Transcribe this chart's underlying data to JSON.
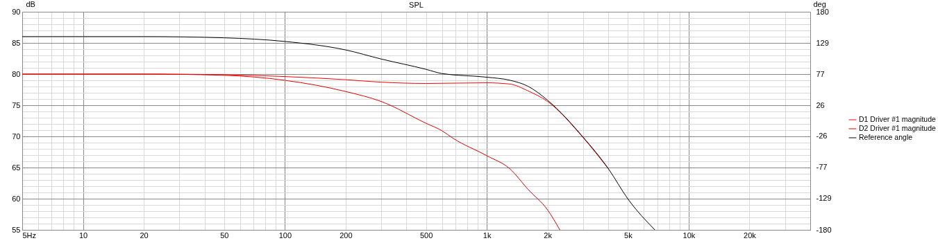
{
  "chart_data": {
    "type": "line",
    "title": "SPL",
    "ylabel": "dB",
    "y2label": "deg",
    "log": "x",
    "x": [
      5,
      10,
      20,
      50,
      100,
      200,
      300,
      500,
      600,
      680,
      1000,
      1300,
      1600,
      2000,
      2300
    ],
    "series": [
      {
        "name": "D1 Driver #1 magnitude",
        "color": "#ff0000",
        "x": [
          5,
          10,
          20,
          50,
          100,
          200,
          300,
          500,
          1000,
          1300,
          1600,
          2000,
          3000,
          4000
        ],
        "values": [
          80,
          80,
          80,
          79.9,
          79.6,
          79.1,
          78.7,
          78.5,
          78.6,
          78.4,
          77.3,
          75.6,
          69.8,
          64.8
        ]
      },
      {
        "name": "D2 Driver #1 magnitude",
        "color": "#e00000",
        "values": [
          80,
          80,
          80,
          79.8,
          79.0,
          77.2,
          75.6,
          72.1,
          70.9,
          69.7,
          66.9,
          64.8,
          61.5,
          58.2,
          55.0
        ]
      },
      {
        "name": "Reference angle",
        "color": "#000000",
        "axis": "y2",
        "x": [
          5,
          10,
          20,
          50,
          100,
          200,
          300,
          500,
          600,
          1000,
          1300,
          1600,
          2000,
          3000,
          4000,
          5000,
          6800
        ],
        "values": [
          139,
          139,
          139,
          137,
          131,
          117,
          102,
          85,
          78,
          72,
          67,
          57,
          34,
          -27,
          -79,
          -129,
          -180
        ]
      }
    ],
    "xlim": [
      5,
      40000
    ],
    "xticks": [
      {
        "value": 5,
        "label": "5Hz"
      },
      {
        "value": 6,
        "label": null
      },
      {
        "value": 7,
        "label": null
      },
      {
        "value": 8,
        "label": null
      },
      {
        "value": 9,
        "label": null
      },
      10,
      20,
      {
        "value": 30,
        "label": null
      },
      {
        "value": 40,
        "label": null
      },
      50,
      {
        "value": 60,
        "label": null
      },
      {
        "value": 70,
        "label": null
      },
      {
        "value": 80,
        "label": null
      },
      {
        "value": 90,
        "label": null
      },
      100,
      200,
      {
        "value": 300,
        "label": null
      },
      {
        "value": 400,
        "label": null
      },
      500,
      {
        "value": 600,
        "label": null
      },
      {
        "value": 700,
        "label": null
      },
      {
        "value": 800,
        "label": null
      },
      {
        "value": 900,
        "label": null
      },
      {
        "value": 1000,
        "label": "1k"
      },
      {
        "value": 2000,
        "label": "2k"
      },
      {
        "value": 3000,
        "label": null
      },
      {
        "value": 4000,
        "label": null
      },
      {
        "value": 5000,
        "label": "5k"
      },
      {
        "value": 6000,
        "label": null
      },
      {
        "value": 7000,
        "label": null
      },
      {
        "value": 8000,
        "label": null
      },
      {
        "value": 9000,
        "label": null
      },
      {
        "value": 10000,
        "label": "10k"
      },
      {
        "value": 20000,
        "label": "20k"
      },
      {
        "value": 30000,
        "label": null
      },
      {
        "value": 40000,
        "label": null
      }
    ],
    "ylim": [
      55,
      90
    ],
    "yticks": [
      55,
      {
        "value": 56,
        "label": null
      },
      {
        "value": 57,
        "label": null
      },
      {
        "value": 58,
        "label": null
      },
      {
        "value": 59,
        "label": null
      },
      60,
      {
        "value": 61,
        "label": null
      },
      {
        "value": 62,
        "label": null
      },
      {
        "value": 63,
        "label": null
      },
      {
        "value": 64,
        "label": null
      },
      65,
      {
        "value": 66,
        "label": null
      },
      {
        "value": 67,
        "label": null
      },
      {
        "value": 68,
        "label": null
      },
      {
        "value": 69,
        "label": null
      },
      70,
      {
        "value": 71,
        "label": null
      },
      {
        "value": 72,
        "label": null
      },
      {
        "value": 73,
        "label": null
      },
      {
        "value": 74,
        "label": null
      },
      75,
      {
        "value": 76,
        "label": null
      },
      {
        "value": 77,
        "label": null
      },
      {
        "value": 78,
        "label": null
      },
      {
        "value": 79,
        "label": null
      },
      80,
      {
        "value": 81,
        "label": null
      },
      {
        "value": 82,
        "label": null
      },
      {
        "value": 83,
        "label": null
      },
      {
        "value": 84,
        "label": null
      },
      85,
      {
        "value": 86,
        "label": null
      },
      {
        "value": 87,
        "label": null
      },
      {
        "value": 88,
        "label": null
      },
      {
        "value": 89,
        "label": null
      },
      90
    ],
    "y2lim": [
      -180,
      180
    ],
    "y2ticks": [
      -180,
      {
        "value": -128.57,
        "label": "-129"
      },
      {
        "value": -77.14,
        "label": "-77"
      },
      {
        "value": -25.71,
        "label": "-26"
      },
      {
        "value": 25.71,
        "label": "26"
      },
      {
        "value": 77.14,
        "label": "77"
      },
      {
        "value": 128.57,
        "label": "129"
      },
      180
    ],
    "grid": true,
    "legend": "right",
    "line_style": "solid",
    "marker": "none"
  }
}
